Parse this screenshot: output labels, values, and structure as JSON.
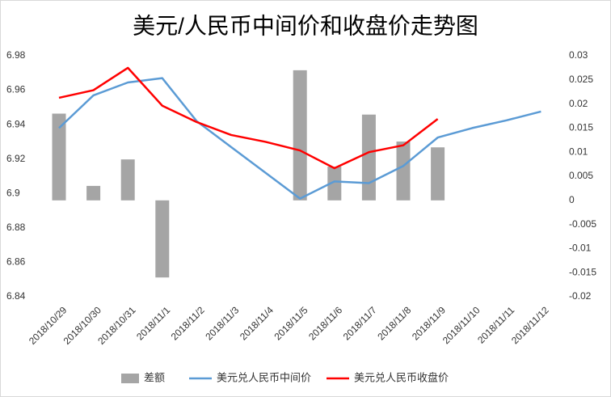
{
  "chart_data": {
    "type": "combo",
    "title": "美元/人民币中间价和收盘价走势图",
    "categories": [
      "2018/10/29",
      "2018/10/30",
      "2018/10/31",
      "2018/11/1",
      "2018/11/2",
      "2018/11/3",
      "2018/11/4",
      "2018/11/5",
      "2018/11/6",
      "2018/11/7",
      "2018/11/8",
      "2018/11/9",
      "2018/11/10",
      "2018/11/11",
      "2018/11/12"
    ],
    "series": [
      {
        "name": "差额",
        "type": "bar",
        "axis": "y2",
        "color": "#a5a5a5",
        "values": [
          0.018,
          0.003,
          0.0085,
          -0.016,
          null,
          null,
          null,
          0.027,
          0.007,
          0.0178,
          0.0122,
          0.011,
          null,
          null,
          null
        ]
      },
      {
        "name": "美元兑人民币中间价",
        "type": "line",
        "color": "#5b9bd5",
        "values": [
          6.938,
          6.957,
          6.9645,
          6.967,
          6.942,
          6.927,
          6.912,
          6.897,
          6.907,
          6.906,
          6.916,
          6.9325,
          6.938,
          6.9425,
          6.9476
        ]
      },
      {
        "name": "美元兑人民币收盘价",
        "type": "line",
        "color": "#ff0000",
        "values": [
          6.9556,
          6.96,
          6.973,
          6.951,
          6.9415,
          6.934,
          6.93,
          6.925,
          6.9147,
          6.924,
          6.928,
          6.9433,
          null,
          null,
          null
        ]
      }
    ],
    "ylim": [
      6.84,
      6.98
    ],
    "yticks": [
      6.84,
      6.86,
      6.88,
      6.9,
      6.92,
      6.94,
      6.96,
      6.98
    ],
    "y2lim": [
      -0.02,
      0.03
    ],
    "y2ticks": [
      -0.02,
      -0.015,
      -0.01,
      -0.005,
      0,
      0.005,
      0.01,
      0.015,
      0.02,
      0.025,
      0.03
    ]
  }
}
